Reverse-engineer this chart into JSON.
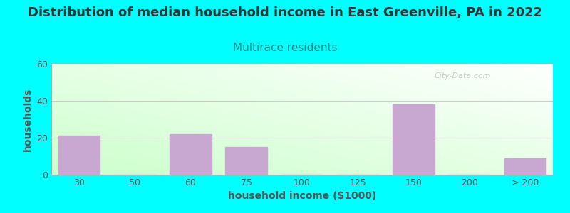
{
  "title": "Distribution of median household income in East Greenville, PA in 2022",
  "subtitle": "Multirace residents",
  "xlabel": "household income ($1000)",
  "ylabel": "households",
  "background_color": "#00FFFF",
  "bar_color": "#C8A8D0",
  "categories": [
    "30",
    "50",
    "60",
    "75",
    "100",
    "125",
    "150",
    "200",
    "> 200"
  ],
  "values": [
    21,
    0,
    22,
    15,
    0,
    0,
    38,
    0,
    9
  ],
  "ylim": [
    0,
    60
  ],
  "yticks": [
    0,
    20,
    40,
    60
  ],
  "grid_color": "#CCCCCC",
  "title_fontsize": 13,
  "subtitle_fontsize": 11,
  "subtitle_color": "#008888",
  "axis_label_fontsize": 10,
  "tick_fontsize": 9,
  "watermark_text": "City-Data.com",
  "title_color": "#333333",
  "tick_color": "#555555",
  "grad_top_color": "#EEFFF5",
  "grad_bottom_color": "#CCFFCC"
}
